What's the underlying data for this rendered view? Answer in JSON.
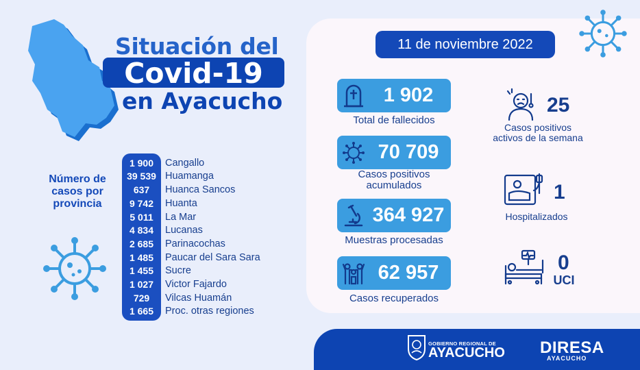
{
  "title": {
    "line1": "Situación del",
    "line2": "Covid-19",
    "line3": "en Ayacucho"
  },
  "date": "11 de noviembre 2022",
  "provinces": {
    "label": "Número de\ncasos por\nprovincia",
    "items": [
      {
        "value": "1 900",
        "name": "Cangallo"
      },
      {
        "value": "39 539",
        "name": "Huamanga"
      },
      {
        "value": "637",
        "name": "Huanca Sancos"
      },
      {
        "value": "9 742",
        "name": "Huanta"
      },
      {
        "value": "5 011",
        "name": "La Mar"
      },
      {
        "value": "4 834",
        "name": "Lucanas"
      },
      {
        "value": "2 685",
        "name": "Parinacochas"
      },
      {
        "value": "1 485",
        "name": "Paucar del Sara Sara"
      },
      {
        "value": "1 455",
        "name": "Sucre"
      },
      {
        "value": "1 027",
        "name": "Victor Fajardo"
      },
      {
        "value": "729",
        "name": "Vilcas Huamán"
      },
      {
        "value": "1 665",
        "name": "Proc. otras regiones"
      }
    ]
  },
  "stats": {
    "deaths": {
      "value": "1 902",
      "label": "Total de fallecidos",
      "icon": "tombstone-icon"
    },
    "cumulative": {
      "value": "70 709",
      "label": "Casos positivos\nacumulados",
      "icon": "virus-icon"
    },
    "samples": {
      "value": "364 927",
      "label": "Muestras procesadas",
      "icon": "microscope-icon"
    },
    "recovered": {
      "value": "62 957",
      "label": "Casos recuperados",
      "icon": "family-icon"
    }
  },
  "side_stats": {
    "active_week": {
      "value": "25",
      "label": "Casos positivos\nactivos de la semana",
      "icon": "sick-person-icon"
    },
    "hospitalized": {
      "value": "1",
      "label": "Hospitalizados",
      "icon": "hospital-bed-icon"
    },
    "icu": {
      "value": "0",
      "label": "UCI",
      "icon": "icu-bed-icon"
    }
  },
  "footer": {
    "gob_line1": "GOBIERNO REGIONAL DE",
    "gob_line2": "AYACUCHO",
    "diresa_line1": "DIRESA",
    "diresa_line2": "AYACUCHO"
  },
  "colors": {
    "background": "#e9eefb",
    "dark_blue": "#0d44b2",
    "stat_blue": "#3b9de0",
    "title_blue": "#2563c9",
    "panel": "#fbf6fb"
  }
}
